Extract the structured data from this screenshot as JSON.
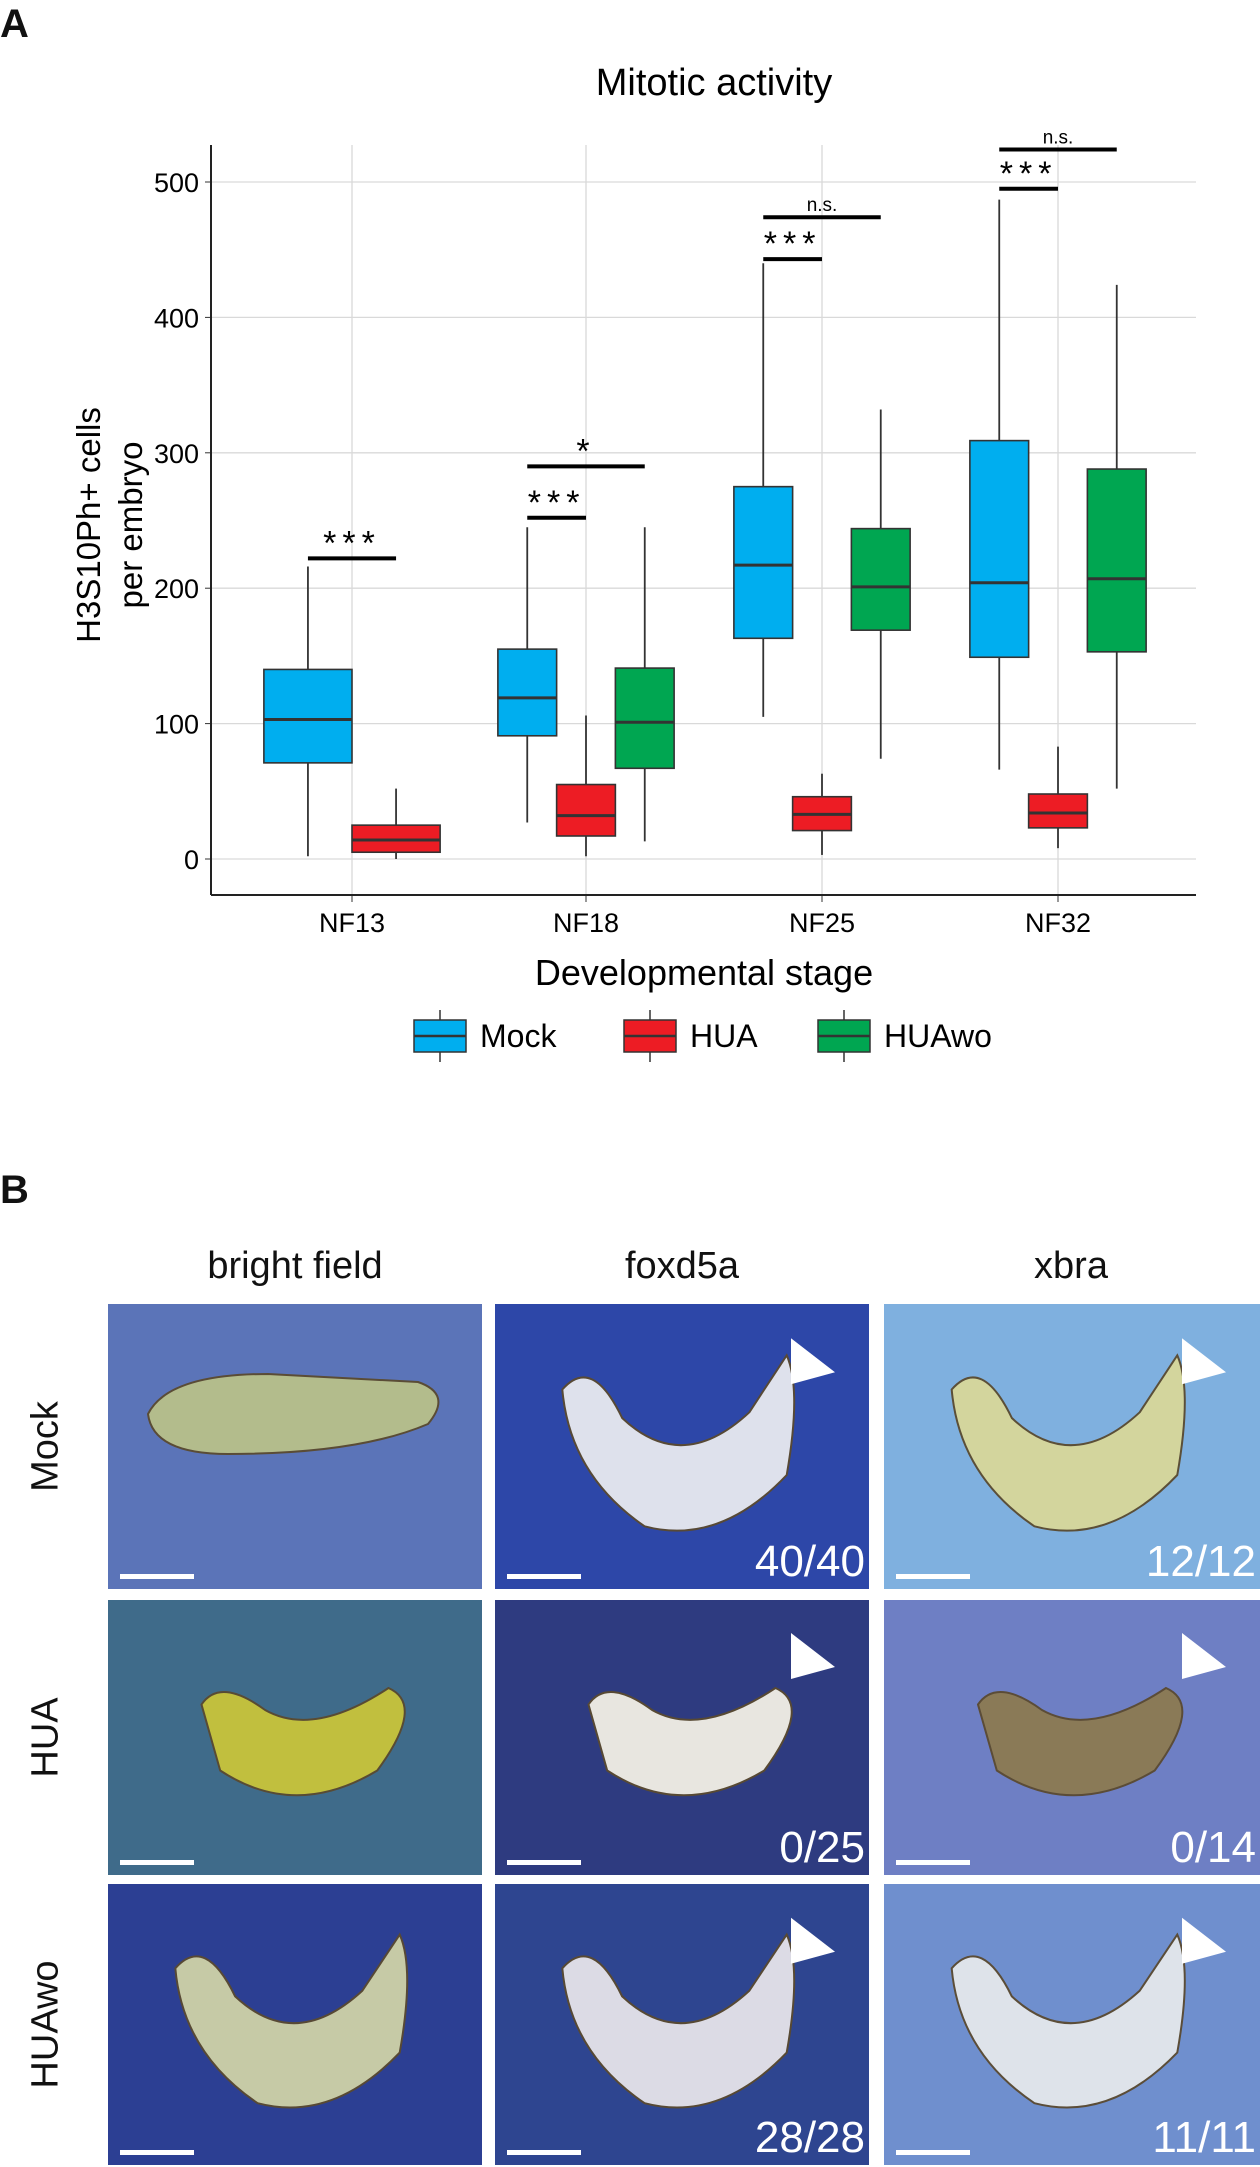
{
  "panels": {
    "a_label": "A",
    "b_label": "B"
  },
  "chart_data": {
    "type": "box",
    "title": "Mitotic activity",
    "xlabel": "Developmental stage",
    "ylabel_line1": "H3S10Ph+ cells",
    "ylabel_line2": "per embryo",
    "ylim": [
      -25,
      530
    ],
    "yticks": [
      0,
      100,
      200,
      300,
      400,
      500
    ],
    "grid": true,
    "legend_position": "bottom",
    "categories": [
      "NF13",
      "NF18",
      "NF25",
      "NF32"
    ],
    "series": [
      {
        "name": "Mock",
        "color": "#00AEEF",
        "boxes": [
          {
            "category": "NF13",
            "min": 2,
            "q1": 71,
            "median": 103,
            "q3": 140,
            "max": 216
          },
          {
            "category": "NF18",
            "min": 27,
            "q1": 91,
            "median": 119,
            "q3": 155,
            "max": 245
          },
          {
            "category": "NF25",
            "min": 105,
            "q1": 163,
            "median": 217,
            "q3": 275,
            "max": 440
          },
          {
            "category": "NF32",
            "min": 66,
            "q1": 149,
            "median": 204,
            "q3": 309,
            "max": 487
          }
        ]
      },
      {
        "name": "HUA",
        "color": "#ED1C24",
        "boxes": [
          {
            "category": "NF13",
            "min": 0,
            "q1": 5,
            "median": 14,
            "q3": 25,
            "max": 52
          },
          {
            "category": "NF18",
            "min": 2,
            "q1": 17,
            "median": 32,
            "q3": 55,
            "max": 106
          },
          {
            "category": "NF25",
            "min": 3,
            "q1": 21,
            "median": 33,
            "q3": 46,
            "max": 63
          },
          {
            "category": "NF32",
            "min": 8,
            "q1": 23,
            "median": 34,
            "q3": 48,
            "max": 83
          }
        ]
      },
      {
        "name": "HUAwo",
        "color": "#00A651",
        "boxes": [
          {
            "category": "NF18",
            "min": 13,
            "q1": 67,
            "median": 101,
            "q3": 141,
            "max": 245
          },
          {
            "category": "NF25",
            "min": 74,
            "q1": 169,
            "median": 201,
            "q3": 244,
            "max": 332
          },
          {
            "category": "NF32",
            "min": 52,
            "q1": 153,
            "median": 207,
            "q3": 288,
            "max": 424
          }
        ]
      }
    ],
    "annotations": [
      {
        "category": "NF13",
        "from": "Mock",
        "to": "HUA",
        "y": 222,
        "label": "***"
      },
      {
        "category": "NF18",
        "from": "Mock",
        "to": "HUA",
        "y": 252,
        "label": "***"
      },
      {
        "category": "NF18",
        "from": "Mock",
        "to": "HUAwo",
        "y": 290,
        "label": "*"
      },
      {
        "category": "NF25",
        "from": "Mock",
        "to": "HUA",
        "y": 443,
        "label": "***"
      },
      {
        "category": "NF25",
        "from": "Mock",
        "to": "HUAwo",
        "y": 474,
        "label": "n.s."
      },
      {
        "category": "NF32",
        "from": "Mock",
        "to": "HUA",
        "y": 495,
        "label": "***"
      },
      {
        "category": "NF32",
        "from": "Mock",
        "to": "HUAwo",
        "y": 524,
        "label": "n.s."
      }
    ]
  },
  "images": {
    "columns": [
      "bright field",
      "foxd5a",
      "xbra"
    ],
    "rows": [
      {
        "label": "Mock",
        "counts": [
          "",
          "40/40",
          "12/12"
        ]
      },
      {
        "label": "HUA",
        "counts": [
          "",
          "0/25",
          "0/14"
        ]
      },
      {
        "label": "HUAwo",
        "counts": [
          "",
          "28/28",
          "11/11"
        ]
      }
    ],
    "arrowhead_icon": "white-triangle-arrowhead",
    "scale_bar_color": "#ffffff"
  }
}
